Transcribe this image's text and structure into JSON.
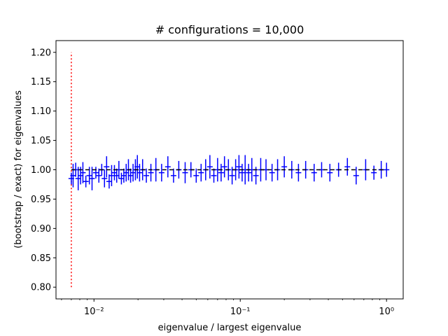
{
  "chart_data": {
    "type": "scatter",
    "title": "# configurations = 10,000",
    "xlabel": "eigenvalue / largest eigenvalue",
    "ylabel": "(bootstrap / exact) for eigenvalues",
    "x_scale": "log",
    "xlim": [
      0.0055,
      1.3
    ],
    "ylim": [
      0.78,
      1.22
    ],
    "x_ticks": [
      {
        "value": 0.01,
        "label": "10⁻²"
      },
      {
        "value": 0.1,
        "label": "10⁻¹"
      },
      {
        "value": 1,
        "label": "10⁰"
      }
    ],
    "y_ticks": [
      {
        "value": 0.8,
        "label": "0.80"
      },
      {
        "value": 0.85,
        "label": "0.85"
      },
      {
        "value": 0.9,
        "label": "0.90"
      },
      {
        "value": 0.95,
        "label": "0.95"
      },
      {
        "value": 1.0,
        "label": "1.00"
      },
      {
        "value": 1.05,
        "label": "1.05"
      },
      {
        "value": 1.1,
        "label": "1.10"
      },
      {
        "value": 1.15,
        "label": "1.15"
      },
      {
        "value": 1.2,
        "label": "1.20"
      }
    ],
    "reference_line": {
      "y": 1.0,
      "style": "dashed",
      "color": "#000000"
    },
    "vertical_marker": {
      "x": 0.007,
      "y_range": [
        0.8,
        1.2
      ],
      "style": "dotted",
      "color": "#ff0000"
    },
    "series": [
      {
        "color": "#0000ff",
        "x": [
          0.007,
          0.0072,
          0.0075,
          0.0078,
          0.0081,
          0.0084,
          0.0088,
          0.0093,
          0.0097,
          0.0103,
          0.0108,
          0.0113,
          0.0118,
          0.0122,
          0.0127,
          0.0132,
          0.0138,
          0.0143,
          0.0148,
          0.0154,
          0.016,
          0.0166,
          0.0172,
          0.0178,
          0.0185,
          0.0192,
          0.0198,
          0.0205,
          0.0215,
          0.0228,
          0.0245,
          0.0265,
          0.029,
          0.032,
          0.035,
          0.038,
          0.042,
          0.046,
          0.05,
          0.054,
          0.058,
          0.062,
          0.066,
          0.07,
          0.074,
          0.078,
          0.083,
          0.088,
          0.093,
          0.098,
          0.103,
          0.108,
          0.114,
          0.12,
          0.128,
          0.138,
          0.15,
          0.165,
          0.18,
          0.2,
          0.225,
          0.25,
          0.28,
          0.32,
          0.36,
          0.41,
          0.47,
          0.54,
          0.62,
          0.72,
          0.82,
          0.92,
          1.0
        ],
        "y": [
          0.985,
          0.99,
          1.0,
          0.985,
          0.99,
          0.995,
          0.98,
          0.99,
          0.985,
          0.995,
          0.99,
          1.0,
          0.985,
          1.005,
          0.98,
          0.99,
          0.995,
          0.99,
          1.0,
          0.985,
          0.99,
          0.995,
          1.0,
          0.99,
          0.995,
          1.0,
          1.005,
          0.995,
          1.0,
          0.99,
          0.995,
          1.0,
          0.995,
          1.005,
          0.99,
          1.0,
          0.995,
          1.0,
          0.99,
          0.995,
          1.0,
          1.005,
          0.99,
          1.0,
          0.995,
          1.005,
          1.0,
          0.99,
          1.0,
          1.005,
          0.995,
          1.0,
          0.995,
          1.0,
          0.99,
          1.0,
          1.0,
          0.995,
          1.0,
          1.005,
          1.0,
          0.995,
          1.0,
          0.995,
          1.0,
          0.995,
          1.0,
          1.005,
          0.99,
          1.0,
          0.995,
          1.0,
          1.0
        ],
        "yerr": [
          0.01,
          0.02,
          0.012,
          0.02,
          0.015,
          0.018,
          0.01,
          0.015,
          0.02,
          0.01,
          0.012,
          0.01,
          0.015,
          0.018,
          0.012,
          0.018,
          0.013,
          0.012,
          0.015,
          0.01,
          0.012,
          0.015,
          0.018,
          0.012,
          0.015,
          0.018,
          0.02,
          0.015,
          0.018,
          0.012,
          0.015,
          0.02,
          0.015,
          0.018,
          0.012,
          0.015,
          0.018,
          0.013,
          0.012,
          0.015,
          0.018,
          0.02,
          0.012,
          0.02,
          0.015,
          0.018,
          0.018,
          0.015,
          0.018,
          0.02,
          0.015,
          0.025,
          0.015,
          0.02,
          0.015,
          0.02,
          0.018,
          0.015,
          0.018,
          0.018,
          0.015,
          0.015,
          0.015,
          0.015,
          0.013,
          0.015,
          0.012,
          0.015,
          0.015,
          0.018,
          0.012,
          0.015,
          0.012
        ]
      }
    ]
  }
}
